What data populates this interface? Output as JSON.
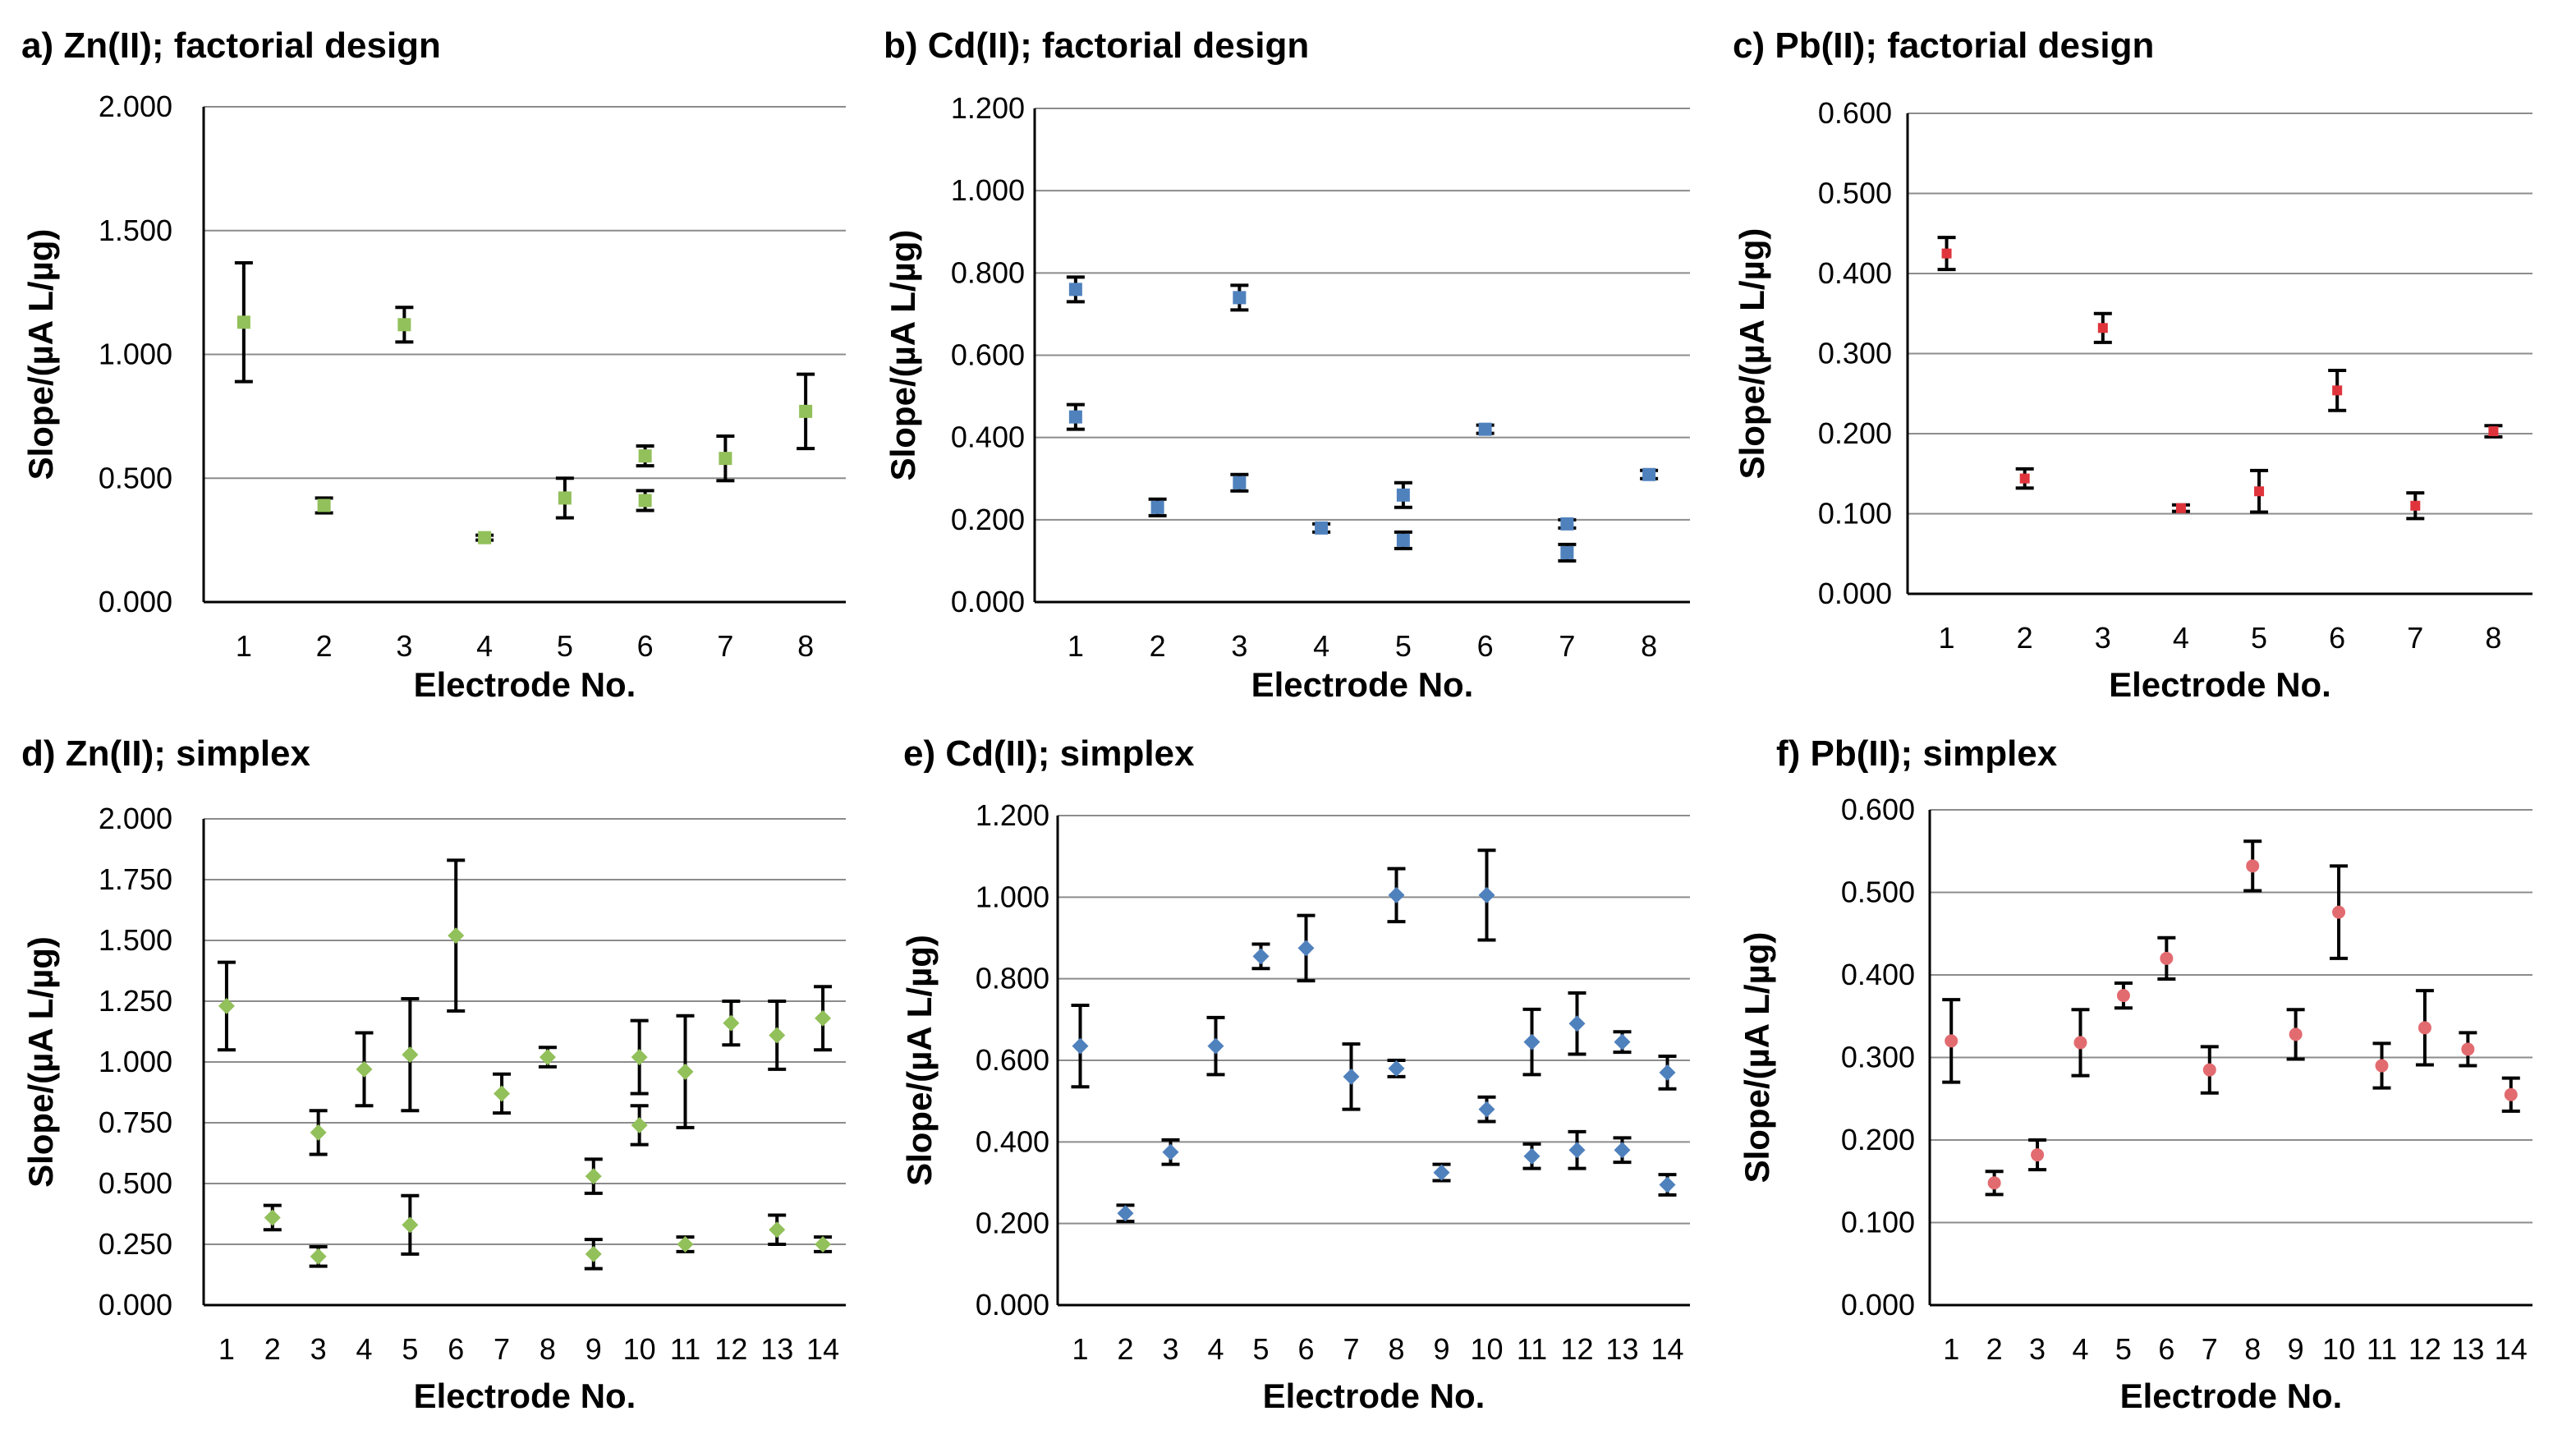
{
  "chart_data": [
    {
      "type": "scatter",
      "title": "a) Zn(II); factorial design",
      "xlabel": "Electrode No.",
      "ylabel": "Slope/(µA L/µg)",
      "ylim": [
        0,
        2.0
      ],
      "yticks": [
        "0.000",
        "0.500",
        "1.000",
        "1.500",
        "2.000"
      ],
      "categories": [
        "1",
        "2",
        "3",
        "4",
        "5",
        "6",
        "7",
        "8"
      ],
      "marker": "square",
      "color": "#92c05a",
      "points": [
        {
          "x": 1,
          "y": 1.13,
          "err": 0.24
        },
        {
          "x": 2,
          "y": 0.39,
          "err": 0.03
        },
        {
          "x": 3,
          "y": 1.12,
          "err": 0.07
        },
        {
          "x": 4,
          "y": 0.26,
          "err": 0.01
        },
        {
          "x": 5,
          "y": 0.42,
          "err": 0.08
        },
        {
          "x": 6,
          "y": 0.59,
          "err": 0.04
        },
        {
          "x": 6,
          "y": 0.41,
          "err": 0.04
        },
        {
          "x": 7,
          "y": 0.58,
          "err": 0.09
        },
        {
          "x": 8,
          "y": 0.77,
          "err": 0.15
        }
      ]
    },
    {
      "type": "scatter",
      "title": "b) Cd(II); factorial design",
      "xlabel": "Electrode No.",
      "ylabel": "Slope/(µA L/µg)",
      "ylim": [
        0,
        1.2
      ],
      "yticks": [
        "0.000",
        "0.200",
        "0.400",
        "0.600",
        "0.800",
        "1.000",
        "1.200"
      ],
      "categories": [
        "1",
        "2",
        "3",
        "4",
        "5",
        "6",
        "7",
        "8"
      ],
      "marker": "square",
      "color": "#4f81bd",
      "points": [
        {
          "x": 1,
          "y": 0.76,
          "err": 0.03
        },
        {
          "x": 1,
          "y": 0.45,
          "err": 0.03
        },
        {
          "x": 2,
          "y": 0.23,
          "err": 0.02
        },
        {
          "x": 3,
          "y": 0.74,
          "err": 0.03
        },
        {
          "x": 3,
          "y": 0.29,
          "err": 0.02
        },
        {
          "x": 4,
          "y": 0.18,
          "err": 0.01
        },
        {
          "x": 5,
          "y": 0.26,
          "err": 0.03
        },
        {
          "x": 5,
          "y": 0.15,
          "err": 0.02
        },
        {
          "x": 6,
          "y": 0.42,
          "err": 0.01
        },
        {
          "x": 7,
          "y": 0.19,
          "err": 0.01
        },
        {
          "x": 7,
          "y": 0.12,
          "err": 0.02
        },
        {
          "x": 8,
          "y": 0.31,
          "err": 0.01
        }
      ]
    },
    {
      "type": "scatter",
      "title": "c) Pb(II); factorial design",
      "xlabel": "Electrode No.",
      "ylabel": "Slope/(µA L/µg)",
      "ylim": [
        0,
        0.6
      ],
      "yticks": [
        "0.000",
        "0.100",
        "0.200",
        "0.300",
        "0.400",
        "0.500",
        "0.600"
      ],
      "categories": [
        "1",
        "2",
        "3",
        "4",
        "5",
        "6",
        "7",
        "8"
      ],
      "marker": "square-small",
      "color": "#e0343c",
      "points": [
        {
          "x": 1,
          "y": 0.425,
          "err": 0.02
        },
        {
          "x": 2,
          "y": 0.144,
          "err": 0.012
        },
        {
          "x": 3,
          "y": 0.332,
          "err": 0.018
        },
        {
          "x": 4,
          "y": 0.107,
          "err": 0.004
        },
        {
          "x": 5,
          "y": 0.128,
          "err": 0.026
        },
        {
          "x": 6,
          "y": 0.254,
          "err": 0.025
        },
        {
          "x": 7,
          "y": 0.11,
          "err": 0.016
        },
        {
          "x": 8,
          "y": 0.203,
          "err": 0.007
        }
      ]
    },
    {
      "type": "scatter",
      "title": "d) Zn(II); simplex",
      "xlabel": "Electrode No.",
      "ylabel": "Slope/(µA L/µg)",
      "ylim": [
        0,
        2.0
      ],
      "yticks": [
        "0.000",
        "0.250",
        "0.500",
        "0.750",
        "1.000",
        "1.250",
        "1.500",
        "1.750",
        "2.000"
      ],
      "categories": [
        "1",
        "2",
        "3",
        "4",
        "5",
        "6",
        "7",
        "8",
        "9",
        "10",
        "11",
        "12",
        "13",
        "14"
      ],
      "marker": "diamond",
      "color": "#92c05a",
      "points": [
        {
          "x": 1,
          "y": 1.23,
          "err": 0.18
        },
        {
          "x": 2,
          "y": 0.36,
          "err": 0.05
        },
        {
          "x": 3,
          "y": 0.71,
          "err": 0.09
        },
        {
          "x": 3,
          "y": 0.2,
          "err": 0.04
        },
        {
          "x": 4,
          "y": 0.97,
          "err": 0.15
        },
        {
          "x": 5,
          "y": 1.03,
          "err": 0.23
        },
        {
          "x": 5,
          "y": 0.33,
          "err": 0.12
        },
        {
          "x": 6,
          "y": 1.52,
          "err": 0.31
        },
        {
          "x": 7,
          "y": 0.87,
          "err": 0.08
        },
        {
          "x": 8,
          "y": 1.02,
          "err": 0.04
        },
        {
          "x": 9,
          "y": 0.53,
          "err": 0.07
        },
        {
          "x": 9,
          "y": 0.21,
          "err": 0.06
        },
        {
          "x": 10,
          "y": 1.02,
          "err": 0.15
        },
        {
          "x": 10,
          "y": 0.74,
          "err": 0.08
        },
        {
          "x": 11,
          "y": 0.96,
          "err": 0.23
        },
        {
          "x": 11,
          "y": 0.25,
          "err": 0.03
        },
        {
          "x": 12,
          "y": 1.16,
          "err": 0.09
        },
        {
          "x": 13,
          "y": 1.11,
          "err": 0.14
        },
        {
          "x": 13,
          "y": 0.31,
          "err": 0.06
        },
        {
          "x": 14,
          "y": 1.18,
          "err": 0.13
        },
        {
          "x": 14,
          "y": 0.25,
          "err": 0.03
        }
      ]
    },
    {
      "type": "scatter",
      "title": "e) Cd(II); simplex",
      "xlabel": "Electrode No.",
      "ylabel": "Slope/(µA L/µg)",
      "ylim": [
        0,
        1.2
      ],
      "yticks": [
        "0.000",
        "0.200",
        "0.400",
        "0.600",
        "0.800",
        "1.000",
        "1.200"
      ],
      "categories": [
        "1",
        "2",
        "3",
        "4",
        "5",
        "6",
        "7",
        "8",
        "9",
        "10",
        "11",
        "12",
        "13",
        "14"
      ],
      "marker": "diamond",
      "color": "#4f81bd",
      "points": [
        {
          "x": 1,
          "y": 0.635,
          "err": 0.1
        },
        {
          "x": 2,
          "y": 0.225,
          "err": 0.02
        },
        {
          "x": 3,
          "y": 0.375,
          "err": 0.03
        },
        {
          "x": 4,
          "y": 0.635,
          "err": 0.07
        },
        {
          "x": 5,
          "y": 0.855,
          "err": 0.03
        },
        {
          "x": 6,
          "y": 0.875,
          "err": 0.08
        },
        {
          "x": 7,
          "y": 0.56,
          "err": 0.08
        },
        {
          "x": 8,
          "y": 1.005,
          "err": 0.065
        },
        {
          "x": 8,
          "y": 0.58,
          "err": 0.02
        },
        {
          "x": 9,
          "y": 0.325,
          "err": 0.02
        },
        {
          "x": 10,
          "y": 1.005,
          "err": 0.11
        },
        {
          "x": 10,
          "y": 0.48,
          "err": 0.03
        },
        {
          "x": 11,
          "y": 0.645,
          "err": 0.08
        },
        {
          "x": 11,
          "y": 0.365,
          "err": 0.03
        },
        {
          "x": 12,
          "y": 0.69,
          "err": 0.075
        },
        {
          "x": 12,
          "y": 0.38,
          "err": 0.045
        },
        {
          "x": 13,
          "y": 0.645,
          "err": 0.025
        },
        {
          "x": 13,
          "y": 0.38,
          "err": 0.03
        },
        {
          "x": 14,
          "y": 0.57,
          "err": 0.04
        },
        {
          "x": 14,
          "y": 0.295,
          "err": 0.025
        }
      ]
    },
    {
      "type": "scatter",
      "title": "f) Pb(II); simplex",
      "xlabel": "Electrode No.",
      "ylabel": "Slope/(µA L/µg)",
      "ylim": [
        0,
        0.6
      ],
      "yticks": [
        "0.000",
        "0.100",
        "0.200",
        "0.300",
        "0.400",
        "0.500",
        "0.600"
      ],
      "categories": [
        "1",
        "2",
        "3",
        "4",
        "5",
        "6",
        "7",
        "8",
        "9",
        "10",
        "11",
        "12",
        "13",
        "14"
      ],
      "marker": "circle",
      "color": "#e26b70",
      "points": [
        {
          "x": 1,
          "y": 0.32,
          "err": 0.05
        },
        {
          "x": 2,
          "y": 0.148,
          "err": 0.014
        },
        {
          "x": 3,
          "y": 0.182,
          "err": 0.018
        },
        {
          "x": 4,
          "y": 0.318,
          "err": 0.04
        },
        {
          "x": 5,
          "y": 0.375,
          "err": 0.015
        },
        {
          "x": 6,
          "y": 0.42,
          "err": 0.025
        },
        {
          "x": 7,
          "y": 0.285,
          "err": 0.028
        },
        {
          "x": 8,
          "y": 0.532,
          "err": 0.03
        },
        {
          "x": 9,
          "y": 0.328,
          "err": 0.03
        },
        {
          "x": 10,
          "y": 0.476,
          "err": 0.056
        },
        {
          "x": 11,
          "y": 0.29,
          "err": 0.027
        },
        {
          "x": 12,
          "y": 0.336,
          "err": 0.045
        },
        {
          "x": 13,
          "y": 0.31,
          "err": 0.02
        },
        {
          "x": 14,
          "y": 0.255,
          "err": 0.02
        }
      ]
    }
  ]
}
